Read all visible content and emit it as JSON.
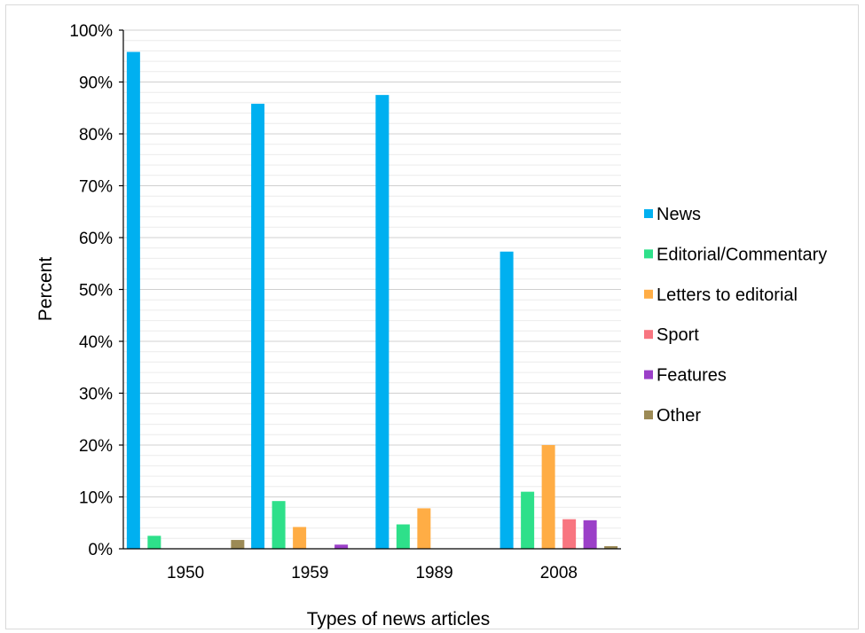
{
  "chart_data": {
    "type": "bar",
    "categories": [
      "1950",
      "1959",
      "1989",
      "2008"
    ],
    "series": [
      {
        "name": "News",
        "color": "#00B0F0",
        "values": [
          95.8,
          85.8,
          87.5,
          57.3
        ]
      },
      {
        "name": "Editorial/Commentary",
        "color": "#2EE08A",
        "values": [
          2.5,
          9.2,
          4.7,
          11.0
        ]
      },
      {
        "name": "Letters to editorial",
        "color": "#FFAD45",
        "values": [
          0,
          4.2,
          7.8,
          20.0
        ]
      },
      {
        "name": "Sport",
        "color": "#F87580",
        "values": [
          0,
          0,
          0,
          5.7
        ]
      },
      {
        "name": "Features",
        "color": "#9B3FC8",
        "values": [
          0,
          0.8,
          0,
          5.5
        ]
      },
      {
        "name": "Other",
        "color": "#9C8A55",
        "values": [
          1.7,
          0,
          0,
          0.5
        ]
      }
    ],
    "ylabel": "Percent",
    "xlabel": "Types of news articles",
    "ylim": [
      0,
      100
    ],
    "yticks": [
      "0%",
      "10%",
      "20%",
      "30%",
      "40%",
      "50%",
      "60%",
      "70%",
      "80%",
      "90%",
      "100%"
    ],
    "grid": true,
    "legend_position": "right"
  }
}
